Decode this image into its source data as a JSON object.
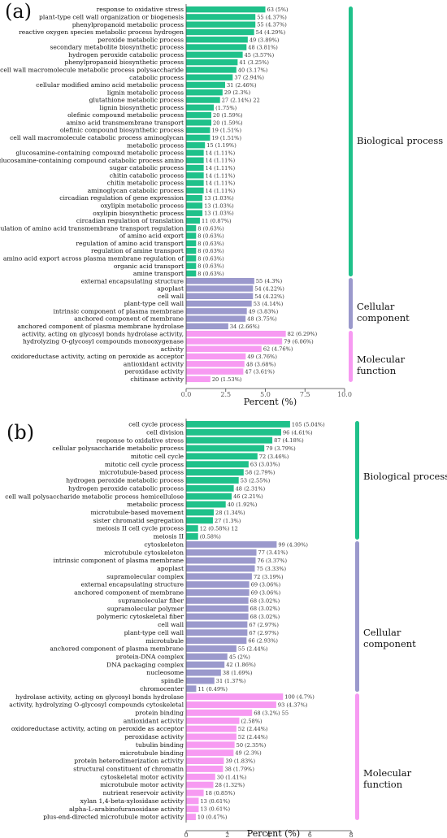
{
  "colors": {
    "bio": "#1fc18a",
    "cell": "#9b99cc",
    "mol": "#f79af2",
    "axis": "#444444",
    "text": "#111111"
  },
  "chart_data": [
    {
      "type": "bar",
      "panel_label": "(a)",
      "xlabel": "Percent (%)",
      "xlim": [
        0,
        10
      ],
      "xticks": [
        "0.0",
        "2.5",
        "5.0",
        "7.5",
        "10.0"
      ],
      "groups": [
        {
          "name": "Biological process",
          "color": "bio"
        },
        {
          "name": "Cellular component",
          "color": "cell"
        },
        {
          "name": "Molecular function",
          "color": "mol"
        }
      ],
      "bars": [
        {
          "term": "response to oxidative stress",
          "percent": 5,
          "label": "63 (5%)",
          "group": 0
        },
        {
          "term": "plant-type cell wall organization or biogenesis",
          "percent": 4.37,
          "label": "55  (4.37%)",
          "group": 0
        },
        {
          "term": "phenylpropanoid metabolic process",
          "percent": 4.37,
          "label": "55  (4.37%)",
          "group": 0
        },
        {
          "term": "reactive oxygen species metabolic process hydrogen",
          "percent": 4.29,
          "label": "54 (4.29%)",
          "group": 0
        },
        {
          "term": "peroxide metabolic process",
          "percent": 3.89,
          "label": "49 (3.89%)",
          "group": 0
        },
        {
          "term": "secondary metabolite biosynthetic process",
          "percent": 3.81,
          "label": "48 (3.81%)",
          "group": 0
        },
        {
          "term": "hydrogen peroxide catabolic process",
          "percent": 3.57,
          "label": "45 (3.57%)",
          "group": 0
        },
        {
          "term": "phenylpropanoid biosynthetic process",
          "percent": 3.25,
          "label": "41 (3.25%)",
          "group": 0
        },
        {
          "term": "cell wall macromolecule metabolic process polysaccharide",
          "percent": 3.17,
          "label": "40 (3.17%)",
          "group": 0
        },
        {
          "term": "catabolic process",
          "percent": 2.94,
          "label": "37 (2.94%)",
          "group": 0
        },
        {
          "term": "cellular modified amino acid metabolic process",
          "percent": 2.46,
          "label": "31 (2.46%)",
          "group": 0
        },
        {
          "term": "lignin metabolic process",
          "percent": 2.3,
          "label": "29 (2.3%)",
          "group": 0
        },
        {
          "term": "glutathione metabolic process",
          "percent": 2.14,
          "label": "27 (2.14%) 22",
          "group": 0
        },
        {
          "term": "lignin biosynthetic process",
          "percent": 1.75,
          "label": "(1.75%)",
          "group": 0
        },
        {
          "term": "olefinic compound metabolic process",
          "percent": 1.59,
          "label": "20  (1.59%)",
          "group": 0
        },
        {
          "term": "amino acid transmembrane transport",
          "percent": 1.59,
          "label": "20  (1.59%)",
          "group": 0
        },
        {
          "term": "olefinic compound biosynthetic process",
          "percent": 1.51,
          "label": "19  (1.51%)",
          "group": 0
        },
        {
          "term": "cell wall macromolecule catabolic process aminoglycan",
          "percent": 1.51,
          "label": "19 (1.51%)",
          "group": 0
        },
        {
          "term": "metabolic process",
          "percent": 1.19,
          "label": "15  (1.19%)",
          "group": 0
        },
        {
          "term": "glucosamine-containing compound metabolic process",
          "percent": 1.11,
          "label": "14   (1.11%)",
          "group": 0
        },
        {
          "term": "glucosamine-containing compound catabolic process amino",
          "percent": 1.11,
          "label": "14   (1.11%)",
          "group": 0
        },
        {
          "term": "sugar catabolic process",
          "percent": 1.11,
          "label": "14   (1.11%)",
          "group": 0
        },
        {
          "term": "chitin catabolic process",
          "percent": 1.11,
          "label": "14   (1.11%)",
          "group": 0
        },
        {
          "term": "chitin metabolic process",
          "percent": 1.11,
          "label": "14   (1.11%)",
          "group": 0
        },
        {
          "term": "aminoglycan catabolic process",
          "percent": 1.11,
          "label": "14   (1.11%)",
          "group": 0
        },
        {
          "term": "circadian regulation of gene expression",
          "percent": 1.03,
          "label": "13   (1.03%)",
          "group": 0
        },
        {
          "term": "oxylipin metabolic process",
          "percent": 1.03,
          "label": "13   (1.03%)",
          "group": 0
        },
        {
          "term": "oxylipin biosynthetic process",
          "percent": 1.03,
          "label": "13 (1.03%)",
          "group": 0
        },
        {
          "term": "circadian regulation of translation",
          "percent": 0.87,
          "label": "11 (0.87%)",
          "group": 0
        },
        {
          "term": "regulation of amino acid transmembrane transport regulation",
          "percent": 0.63,
          "label": "8   (0.63%)",
          "group": 0
        },
        {
          "term": "of amino acid export",
          "percent": 0.63,
          "label": "8   (0.63%)",
          "group": 0
        },
        {
          "term": "regulation of amino acid transport",
          "percent": 0.63,
          "label": "8   (0.63%)",
          "group": 0
        },
        {
          "term": "regulation of amine transport",
          "percent": 0.63,
          "label": "8   (0.63%)",
          "group": 0
        },
        {
          "term": "amino acid export across plasma membrane regulation of",
          "percent": 0.63,
          "label": "8   (0.63%)",
          "group": 0
        },
        {
          "term": "organic acid transport",
          "percent": 0.63,
          "label": "8   (0.63%)",
          "group": 0
        },
        {
          "term": "amine transport",
          "percent": 0.63,
          "label": "8 (0.63%)",
          "group": 0
        },
        {
          "term": "external encapsulating structure",
          "percent": 4.3,
          "label": "55 (4.3%)",
          "group": 1
        },
        {
          "term": "apoplast",
          "percent": 4.22,
          "label": "54 (4.22%)",
          "group": 1
        },
        {
          "term": "cell wall",
          "percent": 4.22,
          "label": "54 (4.22%)",
          "group": 1
        },
        {
          "term": "plant-type cell wall",
          "percent": 4.14,
          "label": "53 (4.14%)",
          "group": 1
        },
        {
          "term": "intrinsic component of plasma membrane",
          "percent": 3.83,
          "label": "49 (3.83%)",
          "group": 1
        },
        {
          "term": "anchored component of membrane",
          "percent": 3.75,
          "label": "48 (3.75%)",
          "group": 1
        },
        {
          "term": "anchored component of plasma membrane hydrolase",
          "percent": 2.66,
          "label": "34 (2.66%)",
          "group": 1
        },
        {
          "term": "activity, acting on glycosyl bonds hydrolase activity,",
          "percent": 6.29,
          "label": "82 (6.29%)",
          "group": 2
        },
        {
          "term": "hydrolyzing O-glycosyl compounds monooxygenase",
          "percent": 6.06,
          "label": "79 (6.06%)",
          "group": 2
        },
        {
          "term": "activity",
          "percent": 4.76,
          "label": "62 (4.76%)",
          "group": 2
        },
        {
          "term": "oxidoreductase activity, acting on peroxide as acceptor",
          "percent": 3.76,
          "label": "49  (3.76%)",
          "group": 2
        },
        {
          "term": "antioxidant activity",
          "percent": 3.68,
          "label": "48  (3.68%)",
          "group": 2
        },
        {
          "term": "peroxidase activity",
          "percent": 3.61,
          "label": "47 (3.61%)",
          "group": 2
        },
        {
          "term": "chitinase activity",
          "percent": 1.53,
          "label": "20 (1.53%)",
          "group": 2
        }
      ]
    },
    {
      "type": "bar",
      "panel_label": "(b)",
      "xlabel": "Percent (%)",
      "xlim": [
        0,
        8
      ],
      "xticks": [
        "0",
        "2",
        "4",
        "6",
        "8"
      ],
      "groups": [
        {
          "name": "Biological process",
          "color": "bio"
        },
        {
          "name": "Cellular component",
          "color": "cell"
        },
        {
          "name": "Molecular function",
          "color": "mol"
        }
      ],
      "bars": [
        {
          "term": "cell cycle process",
          "percent": 5.04,
          "label": "105 (5.04%)",
          "group": 0
        },
        {
          "term": "cell division",
          "percent": 4.61,
          "label": "96 (4.61%)",
          "group": 0
        },
        {
          "term": "response to oxidative stress",
          "percent": 4.18,
          "label": "87 (4.18%)",
          "group": 0
        },
        {
          "term": "cellular polysaccharide metabolic process",
          "percent": 3.79,
          "label": "79 (3.79%)",
          "group": 0
        },
        {
          "term": "mitotic cell cycle",
          "percent": 3.46,
          "label": "72 (3.46%)",
          "group": 0
        },
        {
          "term": "mitotic cell cycle process",
          "percent": 3.03,
          "label": "63 (3.03%)",
          "group": 0
        },
        {
          "term": "microtubule-based process",
          "percent": 2.79,
          "label": "58 (2.79%)",
          "group": 0
        },
        {
          "term": "hydrogen peroxide metabolic process",
          "percent": 2.55,
          "label": "53 (2.55%)",
          "group": 0
        },
        {
          "term": "hydrogen peroxide catabolic process",
          "percent": 2.31,
          "label": "48 (2.31%)",
          "group": 0
        },
        {
          "term": "cell wall polysaccharide metabolic process hemicellulose",
          "percent": 2.21,
          "label": "46 (2.21%)",
          "group": 0
        },
        {
          "term": "metabolic process",
          "percent": 1.92,
          "label": "40 (1.92%)",
          "group": 0
        },
        {
          "term": "microtubule-based movement",
          "percent": 1.34,
          "label": "28 (1.34%)",
          "group": 0
        },
        {
          "term": "sister chromatid segregation",
          "percent": 1.3,
          "label": "27 (1.3%)",
          "group": 0
        },
        {
          "term": "meiosis II cell cycle process",
          "percent": 0.58,
          "label": "12 (0.58%) 12",
          "group": 0
        },
        {
          "term": "meiosis II",
          "percent": 0.58,
          "label": "(0.58%)",
          "group": 0
        },
        {
          "term": "cytoskeleton",
          "percent": 4.39,
          "label": "99 (4.39%)",
          "group": 1
        },
        {
          "term": "microtubule cytoskeleton",
          "percent": 3.41,
          "label": "77   (3.41%)",
          "group": 1
        },
        {
          "term": "intrinsic component of plasma membrane",
          "percent": 3.37,
          "label": "76   (3.37%)",
          "group": 1
        },
        {
          "term": "apoplast",
          "percent": 3.33,
          "label": "75 (3.33%)",
          "group": 1
        },
        {
          "term": "supramolecular complex",
          "percent": 3.19,
          "label": "72 (3.19%)",
          "group": 1
        },
        {
          "term": "external encapsulating structure",
          "percent": 3.06,
          "label": "69   (3.06%)",
          "group": 1
        },
        {
          "term": "anchored component of membrane",
          "percent": 3.06,
          "label": "69   (3.06%)",
          "group": 1
        },
        {
          "term": "supramolecular fiber",
          "percent": 3.02,
          "label": "68   (3.02%)",
          "group": 1
        },
        {
          "term": "supramolecular polymer",
          "percent": 3.02,
          "label": "68   (3.02%)",
          "group": 1
        },
        {
          "term": "polymeric cytoskeletal fiber",
          "percent": 3.02,
          "label": "68   (3.02%)",
          "group": 1
        },
        {
          "term": "cell wall",
          "percent": 2.97,
          "label": "67   (2.97%)",
          "group": 1
        },
        {
          "term": "plant-type cell wall",
          "percent": 2.97,
          "label": "67   (2.97%)",
          "group": 1
        },
        {
          "term": "microtubule",
          "percent": 2.93,
          "label": "66 (2.93%)",
          "group": 1
        },
        {
          "term": "anchored component of plasma membrane",
          "percent": 2.44,
          "label": "55 (2.44%)",
          "group": 1
        },
        {
          "term": "protein-DNA complex",
          "percent": 2,
          "label": "45 (2%)",
          "group": 1
        },
        {
          "term": "DNA packaging complex",
          "percent": 1.86,
          "label": "42 (1.86%)",
          "group": 1
        },
        {
          "term": "nucleosome",
          "percent": 1.69,
          "label": "38 (1.69%)",
          "group": 1
        },
        {
          "term": "spindle",
          "percent": 1.37,
          "label": "31 (1.37%)",
          "group": 1
        },
        {
          "term": "chromocenter",
          "percent": 0.49,
          "label": "11 (0.49%)",
          "group": 1
        },
        {
          "term": "hydrolase activity, acting on glycosyl bonds hydrolase",
          "percent": 4.7,
          "label": "100 (4.7%)",
          "group": 2
        },
        {
          "term": "activity, hydrolyzing O-glycosyl compounds cytoskeletal",
          "percent": 4.37,
          "label": "93 (4.37%)",
          "group": 2
        },
        {
          "term": "protein binding",
          "percent": 3.2,
          "label": "68 (3.2%) 55",
          "group": 2
        },
        {
          "term": "antioxidant activity",
          "percent": 2.58,
          "label": "(2.58%)",
          "group": 2
        },
        {
          "term": "oxidoreductase activity, acting on peroxide as acceptor",
          "percent": 2.44,
          "label": "52   (2.44%)",
          "group": 2
        },
        {
          "term": "peroxidase activity",
          "percent": 2.44,
          "label": "52   (2.44%)",
          "group": 2
        },
        {
          "term": "tubulin binding",
          "percent": 2.35,
          "label": "50   (2.35%)",
          "group": 2
        },
        {
          "term": "microtubule binding",
          "percent": 2.3,
          "label": "49 (2.3%)",
          "group": 2
        },
        {
          "term": "protein heterodimerization activity",
          "percent": 1.83,
          "label": "39 (1.83%)",
          "group": 2
        },
        {
          "term": "structural constituent of chromatin",
          "percent": 1.79,
          "label": "38 (1.79%)",
          "group": 2
        },
        {
          "term": "cytoskeletal motor activity",
          "percent": 1.41,
          "label": "30 (1.41%)",
          "group": 2
        },
        {
          "term": "microtubule motor activity",
          "percent": 1.32,
          "label": "28 (1.32%)",
          "group": 2
        },
        {
          "term": "nutrient reservoir activity",
          "percent": 0.85,
          "label": "18 (0.85%)",
          "group": 2
        },
        {
          "term": "xylan 1,4-beta-xylosidase activity",
          "percent": 0.61,
          "label": "13 (0.61%)",
          "group": 2
        },
        {
          "term": "alpha-L-arabinofuranosidase activity",
          "percent": 0.61,
          "label": "13 (0.61%)",
          "group": 2
        },
        {
          "term": "plus-end-directed microtubule motor activity",
          "percent": 0.47,
          "label": "10 (0.47%)",
          "group": 2
        }
      ]
    }
  ]
}
